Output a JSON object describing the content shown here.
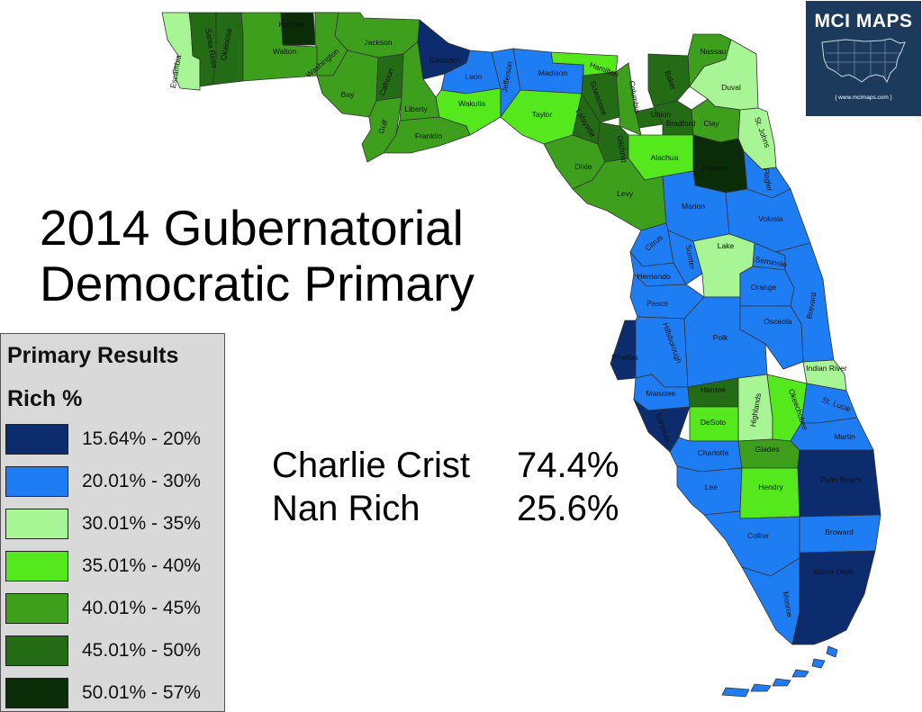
{
  "title_lines": [
    "2014 Gubernatorial",
    "Democratic Primary"
  ],
  "logo": {
    "title": "MCI MAPS",
    "url": "{ www.mcimaps.com }",
    "icon": "usa-map-icon"
  },
  "legend": {
    "title": "Primary Results",
    "subtitle": "Rich %",
    "items": [
      {
        "label": "15.64% - 20%",
        "color": "#0d2c6e"
      },
      {
        "label": "20.01% - 30%",
        "color": "#1f7df3"
      },
      {
        "label": "30.01% - 35%",
        "color": "#a8f595"
      },
      {
        "label": "35.01% - 40%",
        "color": "#55e81c"
      },
      {
        "label": "40.01% - 45%",
        "color": "#3e9f1d"
      },
      {
        "label": "45.01% - 50%",
        "color": "#236b14"
      },
      {
        "label": "50.01% - 57%",
        "color": "#0a2d08"
      }
    ]
  },
  "results": [
    {
      "candidate": "Charlie Crist",
      "pct": "74.4%"
    },
    {
      "candidate": "Nan Rich",
      "pct": "25.6%"
    }
  ],
  "counties": [
    {
      "name": "Escambia",
      "bin": 2
    },
    {
      "name": "Santa Rosa",
      "bin": 5
    },
    {
      "name": "Okaloosa",
      "bin": 5
    },
    {
      "name": "Walton",
      "bin": 4
    },
    {
      "name": "Holmes",
      "bin": 6
    },
    {
      "name": "Washington",
      "bin": 4
    },
    {
      "name": "Jackson",
      "bin": 4
    },
    {
      "name": "Bay",
      "bin": 4
    },
    {
      "name": "Calhoun",
      "bin": 5
    },
    {
      "name": "Gulf",
      "bin": 4
    },
    {
      "name": "Liberty",
      "bin": 4
    },
    {
      "name": "Franklin",
      "bin": 4
    },
    {
      "name": "Gadsden",
      "bin": 0
    },
    {
      "name": "Leon",
      "bin": 1
    },
    {
      "name": "Wakulla",
      "bin": 3
    },
    {
      "name": "Jefferson",
      "bin": 1
    },
    {
      "name": "Madison",
      "bin": 1
    },
    {
      "name": "Taylor",
      "bin": 3
    },
    {
      "name": "Hamilton",
      "bin": 3
    },
    {
      "name": "Suwannee",
      "bin": 5
    },
    {
      "name": "Lafayette",
      "bin": 5
    },
    {
      "name": "Columbia",
      "bin": 4
    },
    {
      "name": "Baker",
      "bin": 5
    },
    {
      "name": "Nassau",
      "bin": 4
    },
    {
      "name": "Duval",
      "bin": 2
    },
    {
      "name": "Union",
      "bin": 5
    },
    {
      "name": "Bradford",
      "bin": 5
    },
    {
      "name": "Clay",
      "bin": 4
    },
    {
      "name": "St. Johns",
      "bin": 2
    },
    {
      "name": "Dixie",
      "bin": 4
    },
    {
      "name": "Gilchrist",
      "bin": 5
    },
    {
      "name": "Alachua",
      "bin": 3
    },
    {
      "name": "Putnam",
      "bin": 6
    },
    {
      "name": "Flagler",
      "bin": 1
    },
    {
      "name": "Levy",
      "bin": 4
    },
    {
      "name": "Marion",
      "bin": 1
    },
    {
      "name": "Volusia",
      "bin": 1
    },
    {
      "name": "Citrus",
      "bin": 1
    },
    {
      "name": "Sumter",
      "bin": 1
    },
    {
      "name": "Lake",
      "bin": 2
    },
    {
      "name": "Seminole",
      "bin": 1
    },
    {
      "name": "Hernando",
      "bin": 1
    },
    {
      "name": "Orange",
      "bin": 1
    },
    {
      "name": "Brevard",
      "bin": 1
    },
    {
      "name": "Pasco",
      "bin": 1
    },
    {
      "name": "Osceola",
      "bin": 1
    },
    {
      "name": "Pinellas",
      "bin": 0
    },
    {
      "name": "Hillsborough",
      "bin": 1
    },
    {
      "name": "Polk",
      "bin": 1
    },
    {
      "name": "Indian River",
      "bin": 2
    },
    {
      "name": "Manatee",
      "bin": 1
    },
    {
      "name": "Hardee",
      "bin": 5
    },
    {
      "name": "Highlands",
      "bin": 2
    },
    {
      "name": "Okeechobee",
      "bin": 3
    },
    {
      "name": "St. Lucie",
      "bin": 1
    },
    {
      "name": "Sarasota",
      "bin": 0
    },
    {
      "name": "DeSoto",
      "bin": 3
    },
    {
      "name": "Martin",
      "bin": 1
    },
    {
      "name": "Charlotte",
      "bin": 1
    },
    {
      "name": "Glades",
      "bin": 4
    },
    {
      "name": "Palm Beach",
      "bin": 0
    },
    {
      "name": "Lee",
      "bin": 1
    },
    {
      "name": "Hendry",
      "bin": 3
    },
    {
      "name": "Collier",
      "bin": 1
    },
    {
      "name": "Broward",
      "bin": 1
    },
    {
      "name": "Monroe",
      "bin": 1
    },
    {
      "name": "Miami-Dade",
      "bin": 0
    }
  ]
}
